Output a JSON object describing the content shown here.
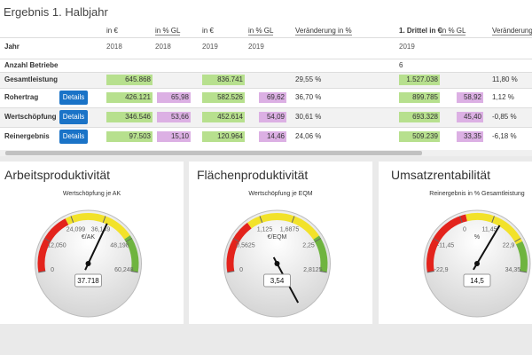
{
  "header": {
    "title": "Ergebnis 1. Halbjahr"
  },
  "table": {
    "columns": [
      "in €",
      "in % GL",
      "in €",
      "in % GL",
      "Veränderung in %",
      "1. Drittel in €",
      "in % GL",
      "Veränderung"
    ],
    "year_label": "Jahr",
    "years": [
      "2018",
      "2018",
      "2019",
      "2019",
      null,
      "2019",
      null,
      null
    ],
    "rows": [
      {
        "label": "Anzahl Betriebe",
        "highlight": false,
        "cells": [
          null,
          null,
          null,
          null,
          null,
          "6",
          null,
          null
        ]
      },
      {
        "label": "Gesamtleistung",
        "highlight": true,
        "cells": [
          "645.868",
          null,
          "836.741",
          null,
          "29,55 %",
          "1.527.038",
          null,
          "11,80 %"
        ]
      },
      {
        "label": "Rohertrag",
        "button": "Details",
        "highlight": true,
        "cells": [
          "426.121",
          "65,98",
          "582.526",
          "69,62",
          "36,70 %",
          "899.785",
          "58,92",
          "1,12 %"
        ]
      },
      {
        "label": "Wertschöpfung",
        "button": "Details",
        "highlight": true,
        "cells": [
          "346.546",
          "53,66",
          "452.614",
          "54,09",
          "30,61 %",
          "693.328",
          "45,40",
          "-0,85 %"
        ]
      },
      {
        "label": "Reinergebnis",
        "button": "Details",
        "highlight": true,
        "cells": [
          "97.503",
          "15,10",
          "120.964",
          "14,46",
          "24,06 %",
          "509.239",
          "33,35",
          "-6,18 %"
        ]
      }
    ]
  },
  "gauges": [
    {
      "title": "Arbeitsproduktivität",
      "subtitle": "Wertschöpfung je AK",
      "unit": "€/AK",
      "range": [
        0,
        60248
      ],
      "ticks": [
        0,
        {
          "value": 12050,
          "label": "12,050"
        },
        {
          "value": 24099,
          "label": "24,099"
        },
        {
          "value": 36149,
          "label": "36,149"
        },
        {
          "value": 48198,
          "label": "48,198"
        },
        {
          "value": 60248,
          "label": "60,248"
        }
      ],
      "value": 37718,
      "value_label": "37.718",
      "bands": [
        {
          "from": 0,
          "to": 22000,
          "color": "#e3231c"
        },
        {
          "from": 22000,
          "to": 47000,
          "color": "#f2e22a"
        },
        {
          "from": 47000,
          "to": 60248,
          "color": "#6fb43f"
        }
      ]
    },
    {
      "title": "Flächenproduktivität",
      "subtitle": "Wertschöpfung je EQM",
      "unit": "€/EQM",
      "range": [
        0,
        2.8125
      ],
      "ticks": [
        0,
        {
          "value": 0.5625,
          "label": "0,5625"
        },
        {
          "value": 1.125,
          "label": "1,125"
        },
        {
          "value": 1.6875,
          "label": "1,6875"
        },
        {
          "value": 2.25,
          "label": "2,25"
        },
        {
          "value": 2.8125,
          "label": "2,8125"
        }
      ],
      "value": 3.54,
      "value_label": "3,54",
      "bands": [
        {
          "from": 0,
          "to": 0.9,
          "color": "#e3231c"
        },
        {
          "from": 0.9,
          "to": 2.2,
          "color": "#f2e22a"
        },
        {
          "from": 2.2,
          "to": 2.8125,
          "color": "#6fb43f"
        }
      ]
    },
    {
      "title": "Umsatzrentabilität",
      "subtitle": "Reinergebnis in % Gesamtleistung",
      "unit": "%",
      "range": [
        -22.9,
        34.35
      ],
      "ticks": [
        {
          "value": -22.9,
          "label": "-22,9"
        },
        {
          "value": -11.45,
          "label": "-11,45"
        },
        0,
        {
          "value": 11.45,
          "label": "11,45"
        },
        {
          "value": 22.9,
          "label": "22,9"
        },
        {
          "value": 34.35,
          "label": "34,35"
        }
      ],
      "value": 14.5,
      "value_label": "14,5",
      "bands": [
        {
          "from": -22.9,
          "to": 2,
          "color": "#e3231c"
        },
        {
          "from": 2,
          "to": 24,
          "color": "#f2e22a"
        },
        {
          "from": 24,
          "to": 34.35,
          "color": "#6fb43f"
        }
      ]
    }
  ]
}
